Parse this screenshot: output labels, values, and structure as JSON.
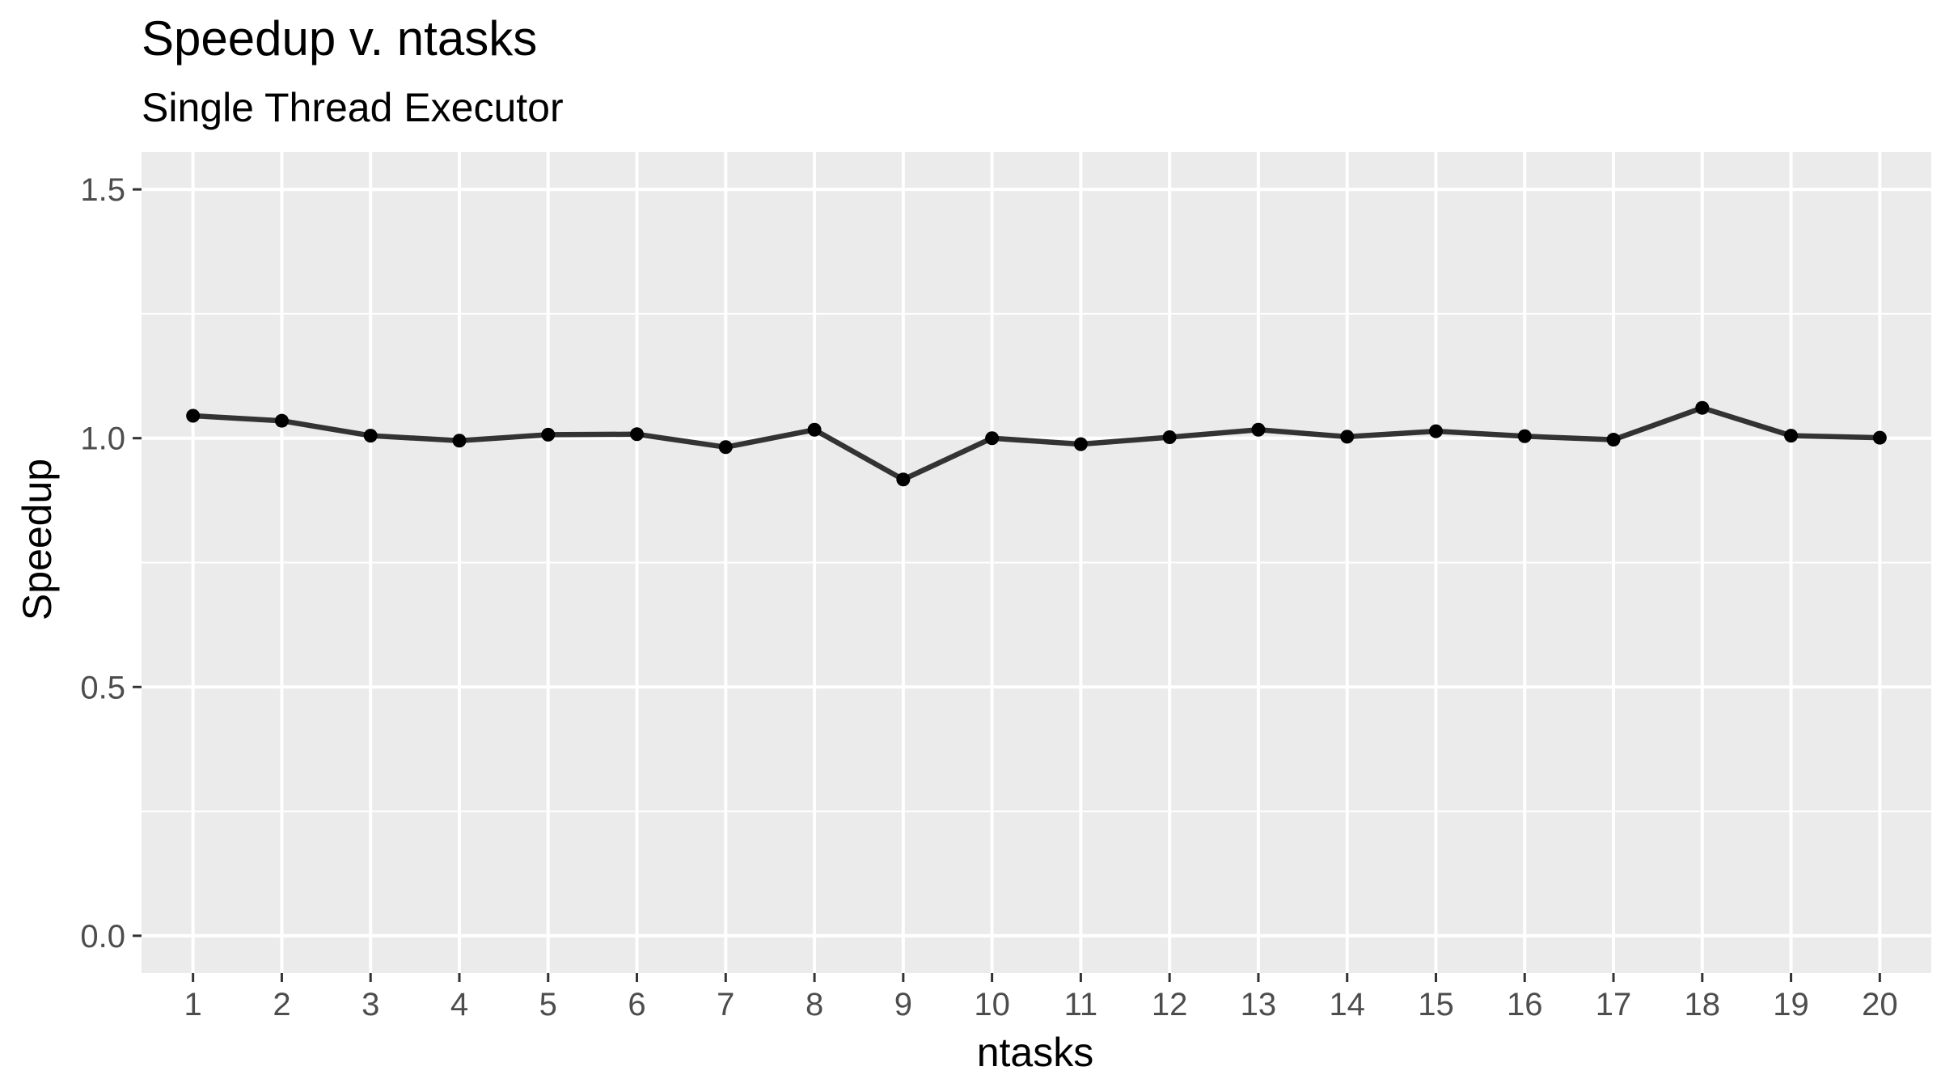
{
  "chart_data": {
    "type": "line",
    "title": "Speedup v. ntasks",
    "subtitle": "Single Thread Executor",
    "xlabel": "ntasks",
    "ylabel": "Speedup",
    "x": [
      1,
      2,
      3,
      4,
      5,
      6,
      7,
      8,
      9,
      10,
      11,
      12,
      13,
      14,
      15,
      16,
      17,
      18,
      19,
      20
    ],
    "y": [
      1.045,
      1.035,
      1.005,
      0.995,
      1.007,
      1.008,
      0.982,
      1.017,
      0.917,
      1.0,
      0.988,
      1.002,
      1.017,
      1.003,
      1.014,
      1.004,
      0.997,
      1.061,
      1.005,
      1.001
    ],
    "xlim": [
      0.42,
      20.58
    ],
    "ylim": [
      -0.075,
      1.575
    ],
    "x_ticks": [
      "1",
      "2",
      "3",
      "4",
      "5",
      "6",
      "7",
      "8",
      "9",
      "10",
      "11",
      "12",
      "13",
      "14",
      "15",
      "16",
      "17",
      "18",
      "19",
      "20"
    ],
    "y_ticks": [
      "0.0",
      "0.5",
      "1.0",
      "1.5"
    ],
    "grid": true,
    "legend": "none",
    "colors": {
      "panel": "#ebebeb",
      "grid": "#ffffff",
      "line": "#333333",
      "point": "#000000",
      "tick": "#333333"
    }
  }
}
